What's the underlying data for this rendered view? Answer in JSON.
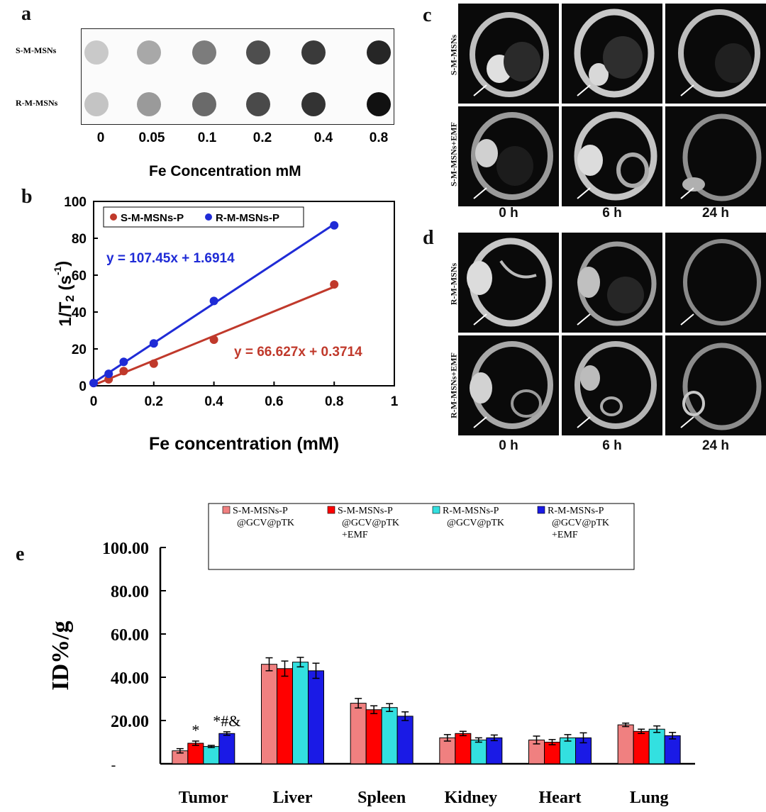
{
  "panels": {
    "a": "a",
    "b": "b",
    "c": "c",
    "d": "d",
    "e": "e"
  },
  "panel_a": {
    "row_labels": [
      "S-M-MSNs",
      "R-M-MSNs"
    ],
    "concentrations": [
      "0",
      "0.05",
      "0.1",
      "0.2",
      "0.4",
      "0.8"
    ],
    "xlabel": "Fe Concentration mM",
    "spot_gray": [
      [
        "#c9c9c9",
        "#a8a8a8",
        "#7c7c7c",
        "#4e4e4e",
        "#3a3a3a",
        "#262626"
      ],
      [
        "#c4c4c4",
        "#9a9a9a",
        "#6a6a6a",
        "#4a4a4a",
        "#333333",
        "#111111"
      ]
    ]
  },
  "panel_c": {
    "rows": [
      "S-M-MSNs",
      "S-M-MSNs+EMF"
    ],
    "times": [
      "0 h",
      "6 h",
      "24 h"
    ]
  },
  "panel_d": {
    "rows": [
      "R-M-MSNs",
      "R-M-MSNs+EMF"
    ],
    "times": [
      "0 h",
      "6 h",
      "24 h"
    ]
  },
  "chart_data": [
    {
      "id": "b",
      "type": "scatter",
      "xlabel": "Fe concentration (mM)",
      "ylabel_main": "1/T",
      "ylabel_sub": "2",
      "ylabel_unit": " (s",
      "ylabel_sup": "-1",
      "ylabel_close": ")",
      "xlim": [
        0,
        1
      ],
      "ylim": [
        0,
        100
      ],
      "xticks": [
        "0",
        "0.2",
        "0.4",
        "0.6",
        "0.8",
        "1"
      ],
      "yticks": [
        "0",
        "20",
        "40",
        "60",
        "80",
        "100"
      ],
      "legend_position": "top-left",
      "series": [
        {
          "name": "S-M-MSNs-P",
          "color": "#c0392b",
          "x": [
            0,
            0.05,
            0.1,
            0.2,
            0.4,
            0.8
          ],
          "y": [
            1.5,
            3.5,
            8,
            12,
            25,
            55
          ],
          "fit": {
            "slope": 66.627,
            "intercept": 0.3714
          },
          "equation": "y = 66.627x + 0.3714"
        },
        {
          "name": "R-M-MSNs-P",
          "color": "#1f2bd6",
          "x": [
            0,
            0.05,
            0.1,
            0.2,
            0.4,
            0.8
          ],
          "y": [
            1.5,
            6.5,
            13,
            23,
            46,
            87
          ],
          "fit": {
            "slope": 107.45,
            "intercept": 1.6914
          },
          "equation": "y = 107.45x + 1.6914"
        }
      ]
    },
    {
      "id": "e",
      "type": "bar",
      "ylabel": "ID%/g",
      "ylim": [
        0,
        100
      ],
      "yticks": [
        "",
        "20.00",
        "40.00",
        "60.00",
        "80.00",
        "100.00"
      ],
      "tick_placeholder": "-",
      "categories": [
        "Tumor",
        "Liver",
        "Spleen",
        "Kidney",
        "Heart",
        "Lung"
      ],
      "legend_position": "top",
      "series": [
        {
          "name_lines": [
            "S-M-MSNs-P",
            "@GCV@pTK"
          ],
          "color": "#f08080",
          "values": [
            6,
            46,
            28,
            12,
            11,
            18
          ],
          "errors": [
            1,
            3,
            2.2,
            1.5,
            1.8,
            0.8
          ]
        },
        {
          "name_lines": [
            "S-M-MSNs-P",
            "@GCV@pTK",
            "+EMF"
          ],
          "color": "#ff0000",
          "values": [
            9.5,
            44,
            25,
            14,
            10,
            15
          ],
          "errors": [
            1,
            3.5,
            1.8,
            1,
            1.2,
            1
          ]
        },
        {
          "name_lines": [
            "R-M-MSNs-P",
            "@GCV@pTK"
          ],
          "color": "#33e0e0",
          "values": [
            8,
            47,
            26,
            11,
            12,
            16
          ],
          "errors": [
            0.5,
            2.2,
            1.8,
            1,
            1.5,
            1.5
          ]
        },
        {
          "name_lines": [
            "R-M-MSNs-P",
            "@GCV@pTK",
            "+EMF"
          ],
          "color": "#1a1ae6",
          "values": [
            14,
            43,
            22,
            12,
            12,
            13
          ],
          "errors": [
            0.8,
            3.5,
            2,
            1.3,
            2.3,
            1.5
          ]
        }
      ],
      "annotations": [
        {
          "text": "*",
          "category": 0,
          "series": 1
        },
        {
          "text": "*#&",
          "category": 0,
          "series": 3
        }
      ]
    }
  ]
}
